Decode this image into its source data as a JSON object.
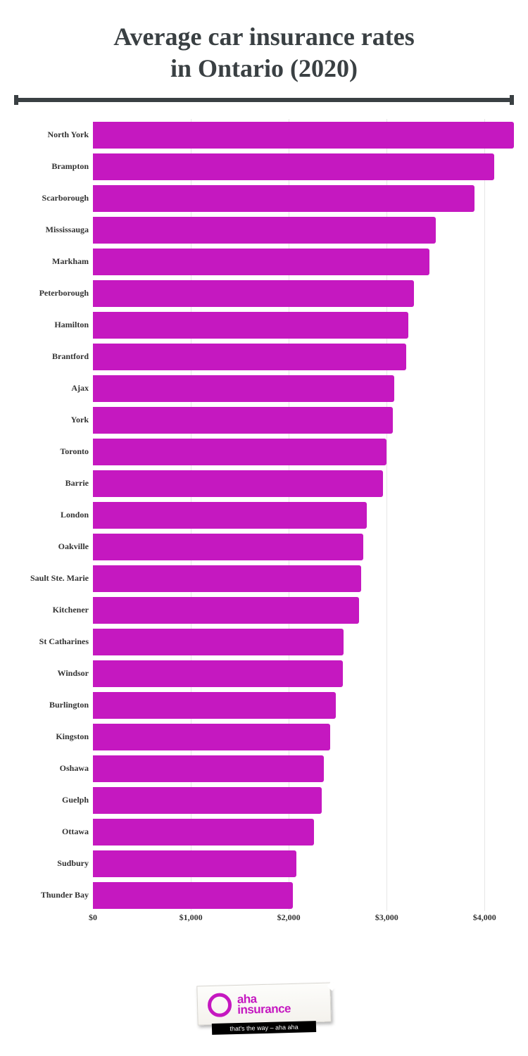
{
  "title_line1": "Average car insurance rates",
  "title_line2": "in Ontario (2020)",
  "divider_color": "#3a4043",
  "chart": {
    "type": "bar",
    "bar_color": "#c518c0",
    "grid_color": "#e6e6e6",
    "label_fontsize": 12,
    "background_color": "#ffffff",
    "xmax": 4300,
    "ticks": [
      {
        "v": 0,
        "label": "$0"
      },
      {
        "v": 1000,
        "label": "$1,000"
      },
      {
        "v": 2000,
        "label": "$2,000"
      },
      {
        "v": 3000,
        "label": "$3,000"
      },
      {
        "v": 4000,
        "label": "$4,000"
      }
    ],
    "items": [
      {
        "label": "North York",
        "value": 4300
      },
      {
        "label": "Brampton",
        "value": 4100
      },
      {
        "label": "Scarborough",
        "value": 3900
      },
      {
        "label": "Mississauga",
        "value": 3500
      },
      {
        "label": "Markham",
        "value": 3440
      },
      {
        "label": "Peterborough",
        "value": 3280
      },
      {
        "label": "Hamilton",
        "value": 3220
      },
      {
        "label": "Brantford",
        "value": 3200
      },
      {
        "label": "Ajax",
        "value": 3080
      },
      {
        "label": "York",
        "value": 3060
      },
      {
        "label": "Toronto",
        "value": 3000
      },
      {
        "label": "Barrie",
        "value": 2960
      },
      {
        "label": "London",
        "value": 2800
      },
      {
        "label": "Oakville",
        "value": 2760
      },
      {
        "label": "Sault Ste. Marie",
        "value": 2740
      },
      {
        "label": "Kitchener",
        "value": 2720
      },
      {
        "label": "St Catharines",
        "value": 2560
      },
      {
        "label": "Windsor",
        "value": 2550
      },
      {
        "label": "Burlington",
        "value": 2480
      },
      {
        "label": "Kingston",
        "value": 2420
      },
      {
        "label": "Oshawa",
        "value": 2360
      },
      {
        "label": "Guelph",
        "value": 2340
      },
      {
        "label": "Ottawa",
        "value": 2260
      },
      {
        "label": "Sudbury",
        "value": 2080
      },
      {
        "label": "Thunder Bay",
        "value": 2040
      }
    ]
  },
  "logo": {
    "brand_line1": "aha",
    "brand_line2": "insurance",
    "tagline": "that's the way – aha aha",
    "ring_color": "#c518c0",
    "text_color": "#c518c0"
  }
}
